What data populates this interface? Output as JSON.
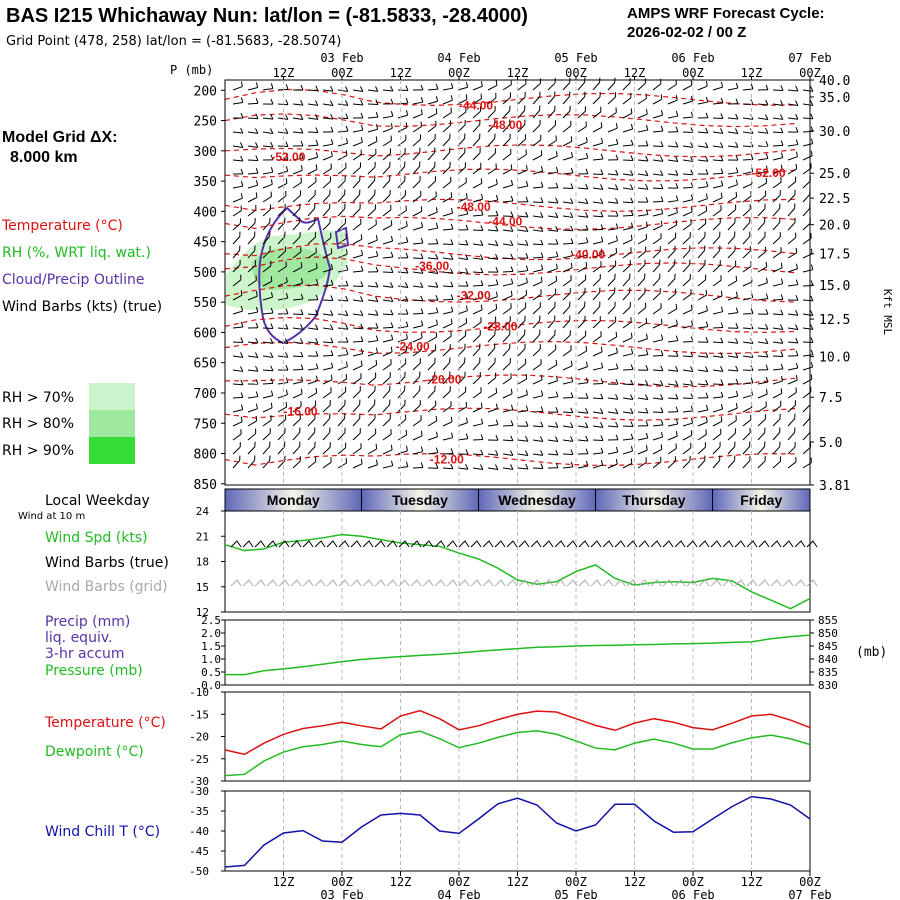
{
  "header": {
    "title": "BAS I215 Whichaway Nun:  lat/lon = (-81.5833, -28.4000)",
    "cycle_title": "AMPS WRF Forecast Cycle:",
    "cycle_time": "2026-02-02 / 00  Z",
    "grid_point": "Grid Point (478, 258) lat/lon = (-81.5683, -28.5074)"
  },
  "left_panel": {
    "model_grid_label": "Model Grid ΔX:",
    "model_grid_value": "8.000 km",
    "legend_temperature": "Temperature (°C)",
    "legend_rh": "RH (%, WRT liq. wat.)",
    "legend_cloud": "Cloud/Precip Outline",
    "legend_wind": "Wind Barbs (kts) (true)",
    "rh_70": "RH > 70%",
    "rh_80": "RH > 80%",
    "rh_90": "RH > 90%",
    "local_weekday": "Local Weekday",
    "wind_at_10m": "Wind at 10 m",
    "wind_spd": "Wind Spd (kts)",
    "wind_barbs_true": "Wind Barbs (true)",
    "wind_barbs_grid": "Wind Barbs (grid)",
    "precip_1": "Precip (mm)",
    "precip_2": "liq. equiv.",
    "precip_3": "3-hr accum",
    "pressure": "Pressure (mb)",
    "temperature": "Temperature (°C)",
    "dewpoint": "Dewpoint (°C)",
    "wind_chill": "Wind Chill T (°C)"
  },
  "colors": {
    "temperature": "#dd1111",
    "rh": "#22bb22",
    "cloud": "#5533aa",
    "wind_chill": "#1111aa",
    "grid_barb": "#aaaaaa",
    "rh70": "#ccf5cc",
    "rh80": "#a0e8a0",
    "rh90": "#33dd33",
    "weekday_band": "#8890c8"
  },
  "chart_data": [
    {
      "type": "heatmap",
      "panel": "cross-section",
      "ylabel": "P (mb)",
      "right_label": "Kft MSL",
      "pressure_ticks": [
        200,
        250,
        300,
        350,
        400,
        450,
        500,
        550,
        600,
        650,
        700,
        750,
        800,
        850
      ],
      "pressure_top_label": "P (mb)",
      "kft_ticks": [
        {
          "p": 183,
          "label": "40.0"
        },
        {
          "p": 211,
          "label": "35.0"
        },
        {
          "p": 267,
          "label": "30.0"
        },
        {
          "p": 337,
          "label": "25.0"
        },
        {
          "p": 378,
          "label": "22.5"
        },
        {
          "p": 422,
          "label": "20.0"
        },
        {
          "p": 470,
          "label": "17.5"
        },
        {
          "p": 522,
          "label": "15.0"
        },
        {
          "p": 578,
          "label": "12.5"
        },
        {
          "p": 640,
          "label": "10.0"
        },
        {
          "p": 707,
          "label": "7.5"
        },
        {
          "p": 781,
          "label": "5.0"
        },
        {
          "p": 852,
          "label": "3.81"
        }
      ],
      "time_ticks_hours": [
        12,
        24,
        36,
        48,
        60,
        72,
        84,
        96,
        108,
        120
      ],
      "time_tick_labels": [
        "12Z",
        "00Z",
        "12Z",
        "00Z",
        "12Z",
        "00Z",
        "12Z",
        "00Z",
        "12Z",
        "00Z"
      ],
      "date_labels": [
        {
          "hour": 24,
          "label": "03 Feb"
        },
        {
          "hour": 48,
          "label": "04 Feb"
        },
        {
          "hour": 72,
          "label": "05 Feb"
        },
        {
          "hour": 96,
          "label": "06 Feb"
        },
        {
          "hour": 120,
          "label": "07 Feb"
        }
      ],
      "temperature_labels": [
        {
          "hour": 51.5,
          "p": 225,
          "label": "-44.00"
        },
        {
          "hour": 57.5,
          "p": 257,
          "label": "-48.00"
        },
        {
          "hour": 13,
          "p": 310,
          "label": "-52.00"
        },
        {
          "hour": 111.5,
          "p": 337,
          "label": "-52.00"
        },
        {
          "hour": 51,
          "p": 393,
          "label": "-48.00"
        },
        {
          "hour": 57.5,
          "p": 417,
          "label": "-44.00"
        },
        {
          "hour": 74.5,
          "p": 471,
          "label": "-40.00"
        },
        {
          "hour": 42.5,
          "p": 490,
          "label": "-36.00"
        },
        {
          "hour": 51,
          "p": 539,
          "label": "-32.00"
        },
        {
          "hour": 56.5,
          "p": 590,
          "label": "-28.00"
        },
        {
          "hour": 38.5,
          "p": 623,
          "label": "-24.00"
        },
        {
          "hour": 45,
          "p": 678,
          "label": "-20.00"
        },
        {
          "hour": 15.5,
          "p": 731,
          "label": "-16.00"
        },
        {
          "hour": 45.5,
          "p": 810,
          "label": "-12.00"
        }
      ]
    },
    {
      "type": "line",
      "panel": "wind-speed",
      "weekday_labels": [
        "Monday",
        "Tuesday",
        "Wednesday",
        "Thursday",
        "Friday"
      ],
      "ylim": [
        12,
        24
      ],
      "y_ticks": [
        12,
        15,
        18,
        21,
        24
      ],
      "series": [
        {
          "name": "Wind Spd (kts)",
          "x": [
            0,
            4,
            8,
            12,
            16,
            20,
            24,
            28,
            32,
            36,
            40,
            44,
            48,
            52,
            56,
            60,
            64,
            68,
            72,
            76,
            80,
            84,
            88,
            92,
            96,
            100,
            104,
            108,
            112,
            116,
            120
          ],
          "values": [
            20.0,
            19.3,
            19.5,
            20.3,
            20.5,
            20.8,
            21.2,
            21.0,
            20.6,
            20.2,
            20.0,
            19.8,
            19.0,
            18.3,
            17.2,
            15.8,
            15.3,
            15.6,
            16.8,
            17.6,
            16.0,
            15.2,
            15.5,
            15.6,
            15.5,
            16.0,
            15.7,
            14.4,
            13.4,
            12.4,
            13.6
          ]
        }
      ]
    },
    {
      "type": "line",
      "panel": "precip-pressure",
      "ylim_left": [
        0,
        2.5
      ],
      "y_ticks_left": [
        "2.5",
        "2.0",
        "1.5",
        "1.0",
        "0.5",
        "0.0"
      ],
      "ylim_right": [
        830,
        855
      ],
      "y_ticks_right": [
        "855",
        "850",
        "845",
        "840",
        "835",
        "830"
      ],
      "right_unit": "(mb)",
      "series": [
        {
          "name": "Pressure (mb)",
          "x": [
            0,
            4,
            8,
            12,
            16,
            20,
            24,
            28,
            32,
            36,
            40,
            44,
            48,
            52,
            56,
            60,
            64,
            68,
            72,
            76,
            80,
            84,
            88,
            92,
            96,
            100,
            104,
            108,
            112,
            116,
            120
          ],
          "values": [
            834.0,
            834.0,
            835.5,
            836.2,
            837.0,
            838.0,
            839.0,
            839.8,
            840.4,
            840.9,
            841.4,
            841.8,
            842.3,
            843.0,
            843.5,
            844.0,
            844.5,
            844.7,
            845.0,
            845.2,
            845.3,
            845.5,
            845.6,
            845.8,
            845.9,
            846.1,
            846.4,
            846.6,
            847.8,
            848.6,
            849.2
          ]
        }
      ]
    },
    {
      "type": "line",
      "panel": "temperature-dewpoint",
      "ylim": [
        -30,
        -10
      ],
      "y_ticks": [
        -10,
        -15,
        -20,
        -25,
        -30
      ],
      "series": [
        {
          "name": "Temperature (°C)",
          "x": [
            0,
            4,
            8,
            12,
            16,
            20,
            24,
            28,
            32,
            36,
            40,
            44,
            48,
            52,
            56,
            60,
            64,
            68,
            72,
            76,
            80,
            84,
            88,
            92,
            96,
            100,
            104,
            108,
            112,
            116,
            120
          ],
          "values": [
            -23.0,
            -24.0,
            -21.5,
            -19.5,
            -18.2,
            -17.6,
            -16.8,
            -17.6,
            -18.3,
            -15.4,
            -14.2,
            -16.0,
            -18.5,
            -17.6,
            -16.2,
            -15.0,
            -14.3,
            -14.5,
            -16.0,
            -17.5,
            -18.6,
            -17.0,
            -16.0,
            -16.8,
            -18.0,
            -18.5,
            -17.0,
            -15.4,
            -15.0,
            -16.3,
            -18.0
          ]
        },
        {
          "name": "Dewpoint (°C)",
          "x": [
            0,
            4,
            8,
            12,
            16,
            20,
            24,
            28,
            32,
            36,
            40,
            44,
            48,
            52,
            56,
            60,
            64,
            68,
            72,
            76,
            80,
            84,
            88,
            92,
            96,
            100,
            104,
            108,
            112,
            116,
            120
          ],
          "values": [
            -28.8,
            -28.5,
            -25.5,
            -23.5,
            -22.3,
            -21.8,
            -21.0,
            -21.8,
            -22.3,
            -19.6,
            -18.8,
            -20.5,
            -22.5,
            -21.5,
            -20.2,
            -19.1,
            -18.7,
            -19.5,
            -21.0,
            -22.6,
            -23.0,
            -21.5,
            -20.6,
            -21.5,
            -22.8,
            -22.8,
            -21.4,
            -20.3,
            -19.7,
            -20.5,
            -21.8
          ]
        }
      ]
    },
    {
      "type": "line",
      "panel": "wind-chill",
      "ylim": [
        -50,
        -30
      ],
      "y_ticks": [
        -30,
        -35,
        -40,
        -45,
        -50
      ],
      "series": [
        {
          "name": "Wind Chill T (°C)",
          "x": [
            0,
            4,
            8,
            12,
            16,
            20,
            24,
            28,
            32,
            36,
            40,
            44,
            48,
            52,
            56,
            60,
            64,
            68,
            72,
            76,
            80,
            84,
            88,
            92,
            96,
            100,
            104,
            108,
            112,
            116,
            120
          ],
          "values": [
            -49.0,
            -48.6,
            -43.5,
            -40.5,
            -39.9,
            -42.5,
            -42.8,
            -39.0,
            -36.0,
            -35.6,
            -36.0,
            -40.0,
            -40.6,
            -37.0,
            -33.2,
            -31.8,
            -33.5,
            -38.0,
            -40.0,
            -38.5,
            -33.3,
            -33.3,
            -37.5,
            -40.3,
            -40.2,
            -37.0,
            -33.9,
            -31.4,
            -32.0,
            -33.5,
            -37.0
          ]
        }
      ]
    }
  ]
}
